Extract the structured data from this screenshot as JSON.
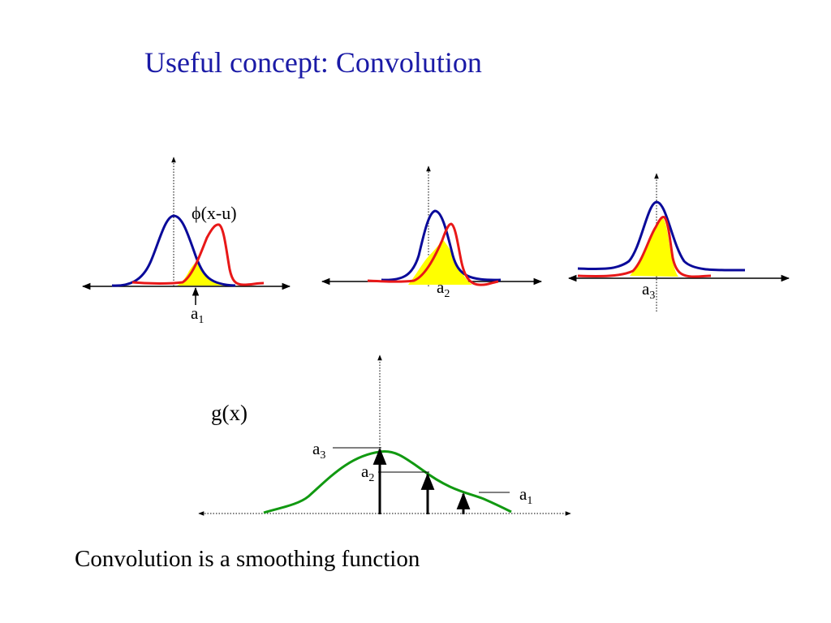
{
  "title": "Useful concept: Convolution",
  "caption": "Convolution is a smoothing function",
  "panel1": {
    "kernel_label": "ϕ(x-u)",
    "a_base": "a",
    "a_sub": "1"
  },
  "panel2": {
    "a_base": "a",
    "a_sub": "2"
  },
  "panel3": {
    "a_base": "a",
    "a_sub": "3"
  },
  "result": {
    "label": "g(x)",
    "a3_base": "a",
    "a3_sub": "3",
    "a2_base": "a",
    "a2_sub": "2",
    "a1_base": "a",
    "a1_sub": "1"
  },
  "colors": {
    "title": "#1a1aa6",
    "signal": "#0a0a9a",
    "kernel": "#e81818",
    "overlap": "#ffff00",
    "result_curve": "#119911"
  }
}
